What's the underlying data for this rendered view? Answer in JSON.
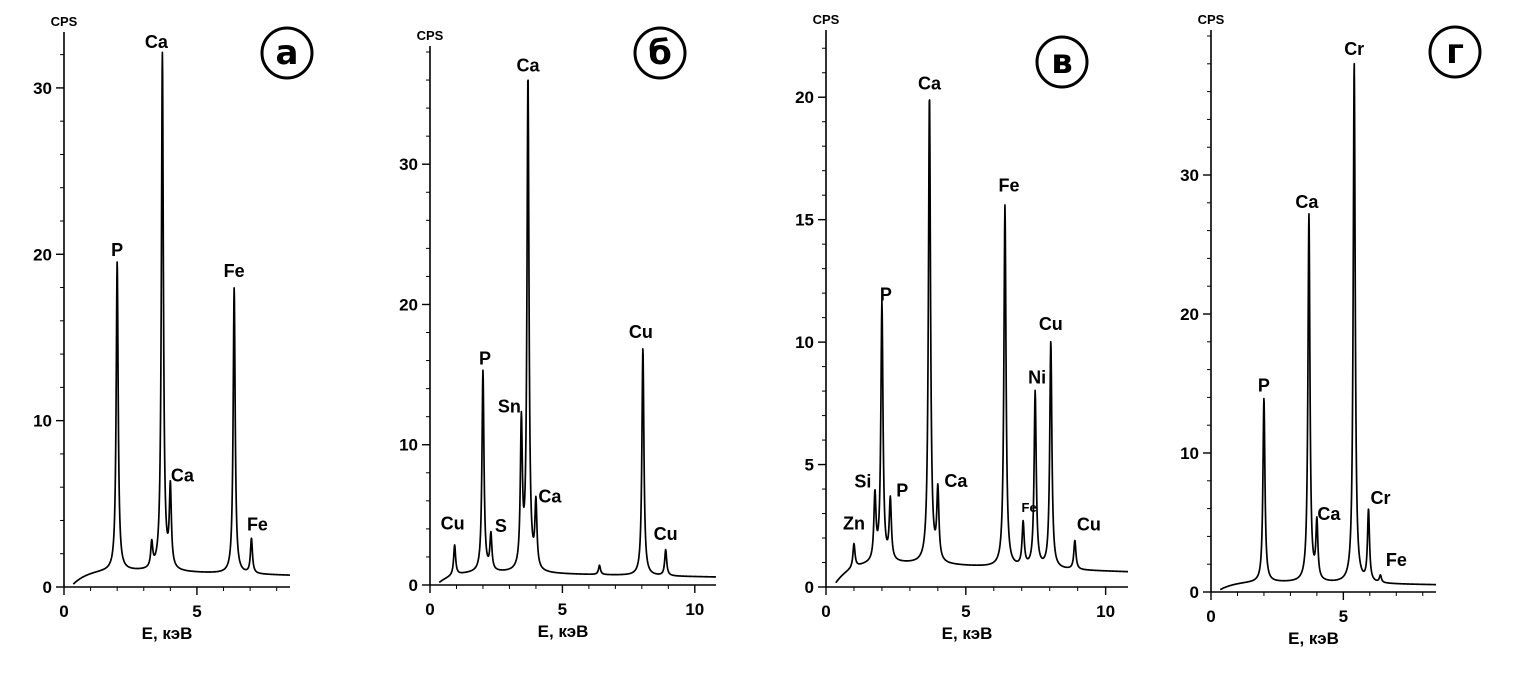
{
  "chart_data": [
    {
      "type": "line",
      "panel_label": "а",
      "ylabel": "CPS",
      "xlabel": "E, кэВ",
      "xlim": [
        0,
        8.5
      ],
      "ylim": [
        0,
        33
      ],
      "xticks": [
        0,
        5
      ],
      "yticks": [
        0,
        10,
        20,
        30
      ],
      "baseline": 0.9,
      "peaks": [
        {
          "label": "P",
          "x": 2.0,
          "y": 19.3
        },
        {
          "label": "",
          "x": 3.3,
          "y": 2.2
        },
        {
          "label": "Ca",
          "x": 3.7,
          "y": 31.8
        },
        {
          "label": "Ca",
          "x": 4.0,
          "y": 5.5
        },
        {
          "label": "Fe",
          "x": 6.4,
          "y": 17.9
        },
        {
          "label": "Fe",
          "x": 7.05,
          "y": 2.8
        }
      ]
    },
    {
      "type": "line",
      "panel_label": "б",
      "ylabel": "CPS",
      "xlabel": "E, кэВ",
      "xlim": [
        0,
        10.8
      ],
      "ylim": [
        0,
        38
      ],
      "xticks": [
        0,
        5,
        10
      ],
      "yticks": [
        0,
        10,
        20,
        30
      ],
      "baseline": 0.8,
      "peaks": [
        {
          "label": "Cu",
          "x": 0.93,
          "y": 2.8
        },
        {
          "label": "P",
          "x": 2.0,
          "y": 15.0
        },
        {
          "label": "S",
          "x": 2.3,
          "y": 3.2
        },
        {
          "label": "Sn",
          "x": 3.45,
          "y": 11.0
        },
        {
          "label": "Ca",
          "x": 3.7,
          "y": 35.9
        },
        {
          "label": "Ca",
          "x": 4.0,
          "y": 5.3
        },
        {
          "label": "",
          "x": 6.4,
          "y": 1.3
        },
        {
          "label": "Cu",
          "x": 8.04,
          "y": 16.9
        },
        {
          "label": "Cu",
          "x": 8.9,
          "y": 2.5
        }
      ]
    },
    {
      "type": "line",
      "panel_label": "в",
      "ylabel": "CPS",
      "xlabel": "E, кэВ",
      "xlim": [
        0,
        10.8
      ],
      "ylim": [
        0,
        22.5
      ],
      "xticks": [
        0,
        5,
        10
      ],
      "yticks": [
        0,
        5,
        10,
        15,
        20
      ],
      "baseline": 0.9,
      "peaks": [
        {
          "label": "Zn",
          "x": 1.0,
          "y": 1.7
        },
        {
          "label": "Si",
          "x": 1.75,
          "y": 3.4
        },
        {
          "label": "P",
          "x": 2.0,
          "y": 11.3
        },
        {
          "label": "P",
          "x": 2.3,
          "y": 3.2
        },
        {
          "label": "Ca",
          "x": 3.7,
          "y": 19.9
        },
        {
          "label": "Ca",
          "x": 4.0,
          "y": 3.6
        },
        {
          "label": "Fe",
          "x": 6.4,
          "y": 15.5
        },
        {
          "label": "Fe",
          "x": 7.05,
          "y": 2.5
        },
        {
          "label": "Ni",
          "x": 7.48,
          "y": 7.9
        },
        {
          "label": "Cu",
          "x": 8.04,
          "y": 10.0
        },
        {
          "label": "Cu",
          "x": 8.9,
          "y": 1.9
        }
      ]
    },
    {
      "type": "line",
      "panel_label": "г",
      "ylabel": "CPS",
      "xlabel": "E, кэВ",
      "xlim": [
        0,
        8.5
      ],
      "ylim": [
        0,
        40
      ],
      "xticks": [
        0,
        5
      ],
      "yticks": [
        0,
        10,
        20,
        30
      ],
      "baseline": 0.6,
      "peaks": [
        {
          "label": "P",
          "x": 2.0,
          "y": 13.7
        },
        {
          "label": "Ca",
          "x": 3.7,
          "y": 26.9
        },
        {
          "label": "Ca",
          "x": 4.0,
          "y": 4.6
        },
        {
          "label": "Cr",
          "x": 5.41,
          "y": 37.9
        },
        {
          "label": "Cr",
          "x": 5.95,
          "y": 5.6
        },
        {
          "label": "Fe",
          "x": 6.4,
          "y": 1.0
        }
      ]
    }
  ]
}
